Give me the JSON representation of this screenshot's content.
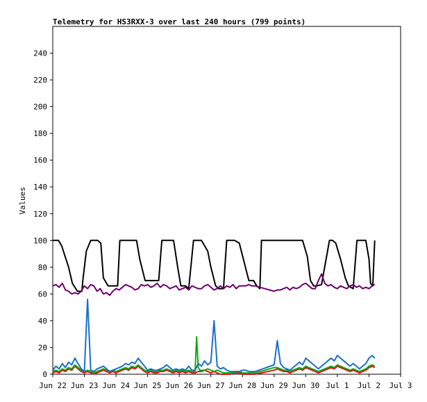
{
  "chart_data": {
    "type": "line",
    "title": "Telemetry for HS3RXX-3 over last 240 hours (799 points)",
    "xlabel": "",
    "ylabel": "Values",
    "ylim": [
      0,
      260
    ],
    "yticks": [
      0,
      20,
      40,
      60,
      80,
      100,
      120,
      140,
      160,
      180,
      200,
      220,
      240
    ],
    "xlim": [
      0,
      11
    ],
    "xtick_labels": [
      "Jun 22",
      "Jun 23",
      "Jun 24",
      "Jun 25",
      "Jun 26",
      "Jun 27",
      "Jun 28",
      "Jun 29",
      "Jun 30",
      "Jul 1",
      "Jul 2",
      "Jul 3"
    ],
    "grid": false,
    "legend": "none",
    "series": [
      {
        "color": "#000000",
        "x": [
          0.0,
          0.18,
          0.28,
          0.5,
          0.62,
          0.78,
          0.92,
          0.95,
          1.06,
          1.2,
          1.32,
          1.42,
          1.52,
          1.6,
          1.75,
          1.85,
          1.95,
          2.05,
          2.12,
          2.55,
          2.65,
          2.75,
          2.92,
          3.1,
          3.25,
          3.35,
          3.45,
          3.55,
          3.65,
          3.82,
          3.95,
          4.05,
          4.2,
          4.3,
          4.45,
          4.7,
          4.9,
          5.0,
          5.15,
          5.25,
          5.4,
          5.5,
          5.58,
          5.75,
          5.9,
          6.05,
          6.2,
          6.35,
          6.45,
          6.55,
          6.6,
          6.85,
          7.0,
          7.2,
          7.4,
          7.55,
          7.65,
          7.9,
          8.05,
          8.15,
          8.25,
          8.35,
          8.5,
          8.75,
          8.85,
          8.95,
          9.1,
          9.25,
          9.35,
          9.5,
          9.62,
          9.9,
          10.0,
          10.05,
          10.12,
          10.18
        ],
        "y": [
          100,
          100,
          96,
          80,
          68,
          62,
          62,
          70,
          92,
          100,
          100,
          100,
          98,
          72,
          66,
          66,
          66,
          66,
          100,
          100,
          100,
          86,
          70,
          70,
          70,
          70,
          100,
          100,
          100,
          100,
          80,
          66,
          66,
          64,
          100,
          100,
          92,
          80,
          66,
          64,
          64,
          100,
          100,
          100,
          98,
          84,
          70,
          70,
          66,
          64,
          100,
          100,
          100,
          100,
          100,
          100,
          100,
          100,
          88,
          70,
          66,
          66,
          67,
          100,
          100,
          98,
          86,
          72,
          66,
          64,
          100,
          100,
          86,
          68,
          66,
          100
        ]
      },
      {
        "color": "#6b006b",
        "x": [
          0.0,
          0.1,
          0.2,
          0.3,
          0.4,
          0.5,
          0.6,
          0.7,
          0.8,
          0.9,
          1.0,
          1.1,
          1.2,
          1.3,
          1.4,
          1.5,
          1.6,
          1.7,
          1.8,
          1.9,
          2.0,
          2.1,
          2.2,
          2.3,
          2.4,
          2.5,
          2.6,
          2.7,
          2.8,
          2.9,
          3.0,
          3.1,
          3.2,
          3.3,
          3.4,
          3.5,
          3.6,
          3.7,
          3.8,
          3.9,
          4.0,
          4.1,
          4.2,
          4.3,
          4.4,
          4.5,
          4.6,
          4.7,
          4.8,
          4.9,
          5.0,
          5.1,
          5.2,
          5.3,
          5.4,
          5.5,
          5.6,
          5.7,
          5.8,
          5.9,
          6.0,
          6.1,
          6.2,
          6.3,
          6.4,
          7.0,
          7.1,
          7.2,
          7.3,
          7.4,
          7.5,
          7.6,
          7.7,
          7.8,
          7.9,
          8.0,
          8.1,
          8.2,
          8.3,
          8.4,
          8.5,
          8.6,
          8.7,
          8.8,
          8.9,
          9.0,
          9.1,
          9.2,
          9.3,
          9.4,
          9.5,
          9.6,
          9.7,
          9.8,
          9.9,
          10.0,
          10.1,
          10.18
        ],
        "y": [
          66,
          67,
          65,
          68,
          63,
          62,
          60,
          61,
          60,
          62,
          66,
          64,
          67,
          66,
          62,
          64,
          60,
          61,
          59,
          62,
          64,
          63,
          65,
          67,
          66,
          65,
          63,
          64,
          67,
          66,
          67,
          65,
          66,
          68,
          65,
          67,
          66,
          64,
          65,
          66,
          63,
          64,
          65,
          63,
          66,
          65,
          64,
          64,
          66,
          67,
          65,
          63,
          64,
          66,
          64,
          66,
          65,
          67,
          64,
          66,
          66,
          66,
          67,
          66,
          66,
          62,
          63,
          63,
          64,
          65,
          63,
          65,
          64,
          65,
          67,
          68,
          66,
          64,
          64,
          70,
          75,
          68,
          66,
          67,
          65,
          64,
          66,
          65,
          64,
          66,
          67,
          65,
          66,
          64,
          65,
          64,
          66,
          67
        ]
      },
      {
        "color": "#dd1111",
        "x": [
          0.0,
          0.1,
          0.2,
          0.3,
          0.4,
          0.5,
          0.6,
          0.7,
          0.8,
          0.9,
          1.0,
          1.1,
          1.2,
          1.3,
          1.4,
          1.5,
          1.6,
          1.7,
          1.8,
          1.9,
          2.0,
          2.1,
          2.2,
          2.3,
          2.4,
          2.5,
          2.6,
          2.7,
          2.8,
          2.9,
          3.0,
          3.1,
          3.2,
          3.3,
          3.4,
          3.5,
          3.6,
          3.7,
          3.8,
          3.9,
          4.0,
          4.1,
          4.2,
          4.3,
          4.4,
          4.5,
          4.6,
          4.7,
          4.8,
          4.9,
          5.0,
          5.1,
          5.2,
          5.3,
          5.4,
          5.5,
          5.6,
          5.7,
          5.8,
          5.9,
          6.0,
          6.1,
          6.2,
          6.3,
          6.4,
          7.0,
          7.1,
          7.2,
          7.3,
          7.4,
          7.5,
          7.6,
          7.7,
          7.8,
          7.9,
          8.0,
          8.1,
          8.2,
          8.3,
          8.4,
          8.5,
          8.6,
          8.7,
          8.8,
          8.9,
          9.0,
          9.1,
          9.2,
          9.3,
          9.4,
          9.5,
          9.6,
          9.7,
          9.8,
          9.9,
          10.0,
          10.1,
          10.18
        ],
        "y": [
          1,
          2,
          1,
          3,
          2,
          4,
          3,
          6,
          4,
          2,
          1,
          2,
          1,
          0,
          1,
          2,
          3,
          2,
          1,
          2,
          1,
          2,
          3,
          4,
          3,
          5,
          4,
          6,
          4,
          2,
          1,
          2,
          1,
          1,
          2,
          2,
          3,
          2,
          1,
          2,
          1,
          2,
          1,
          2,
          1,
          1,
          2,
          2,
          3,
          2,
          1,
          2,
          1,
          0,
          0,
          0,
          0,
          1,
          1,
          1,
          0,
          0,
          0,
          0,
          0,
          3,
          4,
          3,
          2,
          2,
          1,
          2,
          3,
          4,
          3,
          5,
          4,
          3,
          2,
          1,
          2,
          3,
          4,
          5,
          4,
          6,
          5,
          4,
          3,
          2,
          3,
          2,
          1,
          2,
          3,
          5,
          6,
          5
        ]
      },
      {
        "color": "#11aa11",
        "x": [
          0.0,
          0.1,
          0.2,
          0.3,
          0.4,
          0.5,
          0.6,
          0.7,
          0.8,
          0.9,
          1.0,
          1.1,
          1.2,
          1.3,
          1.4,
          1.5,
          1.6,
          1.7,
          1.8,
          1.9,
          2.0,
          2.1,
          2.2,
          2.3,
          2.4,
          2.5,
          2.6,
          2.7,
          2.8,
          2.9,
          3.0,
          3.1,
          3.2,
          3.3,
          3.4,
          3.5,
          3.6,
          3.7,
          3.8,
          3.9,
          4.0,
          4.1,
          4.2,
          4.3,
          4.4,
          4.5,
          4.55,
          4.6,
          4.65,
          4.7,
          4.8,
          4.9,
          5.0,
          5.1,
          5.2,
          5.3,
          5.4,
          5.5,
          5.6,
          5.7,
          5.8,
          5.9,
          6.0,
          6.1,
          6.2,
          6.3,
          6.4,
          7.0,
          7.1,
          7.2,
          7.3,
          7.4,
          7.5,
          7.6,
          7.7,
          7.8,
          7.9,
          8.0,
          8.1,
          8.2,
          8.3,
          8.4,
          8.5,
          8.6,
          8.7,
          8.8,
          8.9,
          9.0,
          9.1,
          9.2,
          9.3,
          9.4,
          9.5,
          9.6,
          9.7,
          9.8,
          9.9,
          10.0,
          10.1,
          10.18
        ],
        "y": [
          2,
          3,
          2,
          4,
          3,
          5,
          4,
          7,
          5,
          3,
          2,
          3,
          2,
          1,
          2,
          3,
          4,
          3,
          2,
          3,
          2,
          3,
          4,
          5,
          4,
          6,
          5,
          7,
          5,
          3,
          2,
          3,
          2,
          2,
          3,
          3,
          4,
          3,
          2,
          3,
          2,
          3,
          2,
          3,
          2,
          2,
          28,
          5,
          3,
          3,
          3,
          4,
          3,
          2,
          3,
          2,
          1,
          1,
          1,
          1,
          2,
          2,
          1,
          1,
          1,
          1,
          1,
          5,
          5,
          4,
          3,
          3,
          2,
          3,
          4,
          5,
          4,
          6,
          5,
          4,
          3,
          2,
          3,
          4,
          5,
          6,
          5,
          7,
          6,
          5,
          4,
          3,
          4,
          3,
          2,
          3,
          4,
          6,
          7,
          6
        ]
      },
      {
        "color": "#1a6fc9",
        "x": [
          0.0,
          0.1,
          0.2,
          0.3,
          0.4,
          0.5,
          0.6,
          0.7,
          0.8,
          0.9,
          1.0,
          1.1,
          1.2,
          1.3,
          1.4,
          1.5,
          1.6,
          1.7,
          1.8,
          1.9,
          2.0,
          2.1,
          2.2,
          2.3,
          2.4,
          2.5,
          2.6,
          2.7,
          2.8,
          2.9,
          3.0,
          3.1,
          3.2,
          3.3,
          3.4,
          3.5,
          3.6,
          3.7,
          3.8,
          3.9,
          4.0,
          4.1,
          4.2,
          4.3,
          4.4,
          4.5,
          4.6,
          4.7,
          4.8,
          4.9,
          5.0,
          5.1,
          5.2,
          5.3,
          5.4,
          5.5,
          5.6,
          5.7,
          5.8,
          5.9,
          6.0,
          6.1,
          6.2,
          6.3,
          6.4,
          7.0,
          7.1,
          7.2,
          7.3,
          7.4,
          7.5,
          7.6,
          7.7,
          7.8,
          7.9,
          8.0,
          8.1,
          8.2,
          8.3,
          8.4,
          8.5,
          8.6,
          8.7,
          8.8,
          8.9,
          9.0,
          9.1,
          9.2,
          9.3,
          9.4,
          9.5,
          9.6,
          9.7,
          9.8,
          9.9,
          10.0,
          10.1,
          10.18
        ],
        "y": [
          3,
          6,
          4,
          8,
          5,
          9,
          7,
          12,
          8,
          4,
          2,
          56,
          3,
          2,
          4,
          5,
          6,
          4,
          2,
          3,
          4,
          5,
          6,
          8,
          7,
          9,
          8,
          12,
          9,
          6,
          3,
          4,
          3,
          3,
          4,
          5,
          7,
          5,
          3,
          4,
          3,
          4,
          3,
          6,
          3,
          3,
          8,
          6,
          10,
          7,
          9,
          40,
          6,
          4,
          5,
          3,
          2,
          2,
          2,
          2,
          3,
          3,
          2,
          2,
          2,
          7,
          25,
          8,
          5,
          4,
          3,
          5,
          7,
          9,
          7,
          12,
          10,
          8,
          6,
          4,
          6,
          8,
          10,
          12,
          10,
          14,
          12,
          10,
          8,
          6,
          8,
          6,
          4,
          6,
          8,
          12,
          14,
          12
        ]
      }
    ]
  }
}
